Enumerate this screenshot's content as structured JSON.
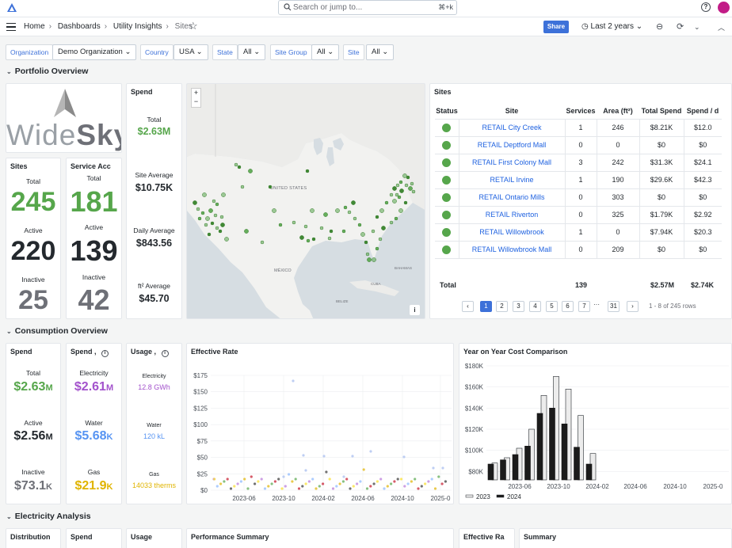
{
  "topbar": {
    "search_placeholder": "Search or jump to...",
    "search_shortcut": "⌘+k",
    "help": "?"
  },
  "breadcrumb": {
    "home": "Home",
    "dashboards": "Dashboards",
    "folder": "Utility Insights",
    "page": "Sites"
  },
  "toolbar": {
    "share": "Share",
    "time_range": "Last 2 years"
  },
  "variables": {
    "organization_label": "Organization",
    "organization_value": "Demo Organization",
    "country_label": "Country",
    "country_value": "USA",
    "state_label": "State",
    "state_value": "All",
    "site_group_label": "Site Group",
    "site_group_value": "All",
    "site_label": "Site",
    "site_value": "All"
  },
  "sections": {
    "portfolio": "Portfolio Overview",
    "consumption": "Consumption Overview",
    "electricity": "Electricity Analysis"
  },
  "logo": {
    "word1": "Wide",
    "word2": "Sky"
  },
  "sites_stat": {
    "title": "Sites",
    "total_label": "Total",
    "total": "245",
    "active_label": "Active",
    "active": "220",
    "inactive_label": "Inactive",
    "inactive": "25"
  },
  "service_stat": {
    "title": "Service Acc",
    "total_label": "Total",
    "total": "181",
    "active_label": "Active",
    "active": "139",
    "inactive_label": "Inactive",
    "inactive": "42"
  },
  "spend_stat": {
    "title": "Spend",
    "total_label": "Total",
    "total": "$2.63M",
    "site_avg_label": "Site Average",
    "site_avg": "$10.75K",
    "daily_avg_label": "Daily Average",
    "daily_avg": "$843.56",
    "sqft_avg_label": "ft² Average",
    "sqft_avg": "$45.70"
  },
  "map": {
    "label_us": "UNITED STATES",
    "label_mx": "MÉXICO",
    "label_belize": "BELIZE",
    "label_cuba": "CUBA",
    "label_bahamas": "BAHAMAS",
    "zoom_in": "+",
    "zoom_out": "−",
    "info": "i"
  },
  "sites_table": {
    "title": "Sites",
    "headers": [
      "Status",
      "Site",
      "Services",
      "Area (ft²)",
      "Total Spend",
      "Spend / d"
    ],
    "rows": [
      [
        "RETAIL City Creek",
        "1",
        "246",
        "$8.21K",
        "$12.0"
      ],
      [
        "RETAIL Deptford Mall",
        "0",
        "0",
        "$0",
        "$0"
      ],
      [
        "RETAIL First Colony Mall",
        "3",
        "242",
        "$31.3K",
        "$24.1"
      ],
      [
        "RETAIL Irvine",
        "1",
        "190",
        "$29.6K",
        "$42.3"
      ],
      [
        "RETAIL Ontario Mills",
        "0",
        "303",
        "$0",
        "$0"
      ],
      [
        "RETAIL Riverton",
        "0",
        "325",
        "$1.79K",
        "$2.92"
      ],
      [
        "RETAIL Willowbrook",
        "1",
        "0",
        "$7.94K",
        "$20.3"
      ],
      [
        "RETAIL Willowbrook Mall",
        "0",
        "209",
        "$0",
        "$0"
      ]
    ],
    "total_label": "Total",
    "total_services": "139",
    "total_spend": "$2.57M",
    "total_spend_d": "$2.74K",
    "pages": [
      "1",
      "2",
      "3",
      "4",
      "5",
      "6",
      "7",
      "···",
      "31"
    ],
    "prev": "‹",
    "next": "›",
    "range_text": "1 - 8 of 245 rows"
  },
  "cons_spend": {
    "title": "Spend",
    "total_label": "Total",
    "total": "$2.63",
    "total_unit": "M",
    "active_label": "Active",
    "active": "$2.56",
    "active_unit": "M",
    "inactive_label": "Inactive",
    "inactive": "$73.1",
    "inactive_unit": "K"
  },
  "cons_spend_by": {
    "title": "Spend ,",
    "elec_label": "Electricity",
    "elec": "$2.61",
    "elec_unit": "M",
    "water_label": "Water",
    "water": "$5.68",
    "water_unit": "K",
    "gas_label": "Gas",
    "gas": "$21.9",
    "gas_unit": "K"
  },
  "cons_usage": {
    "title": "Usage ,",
    "elec_label": "Electricity",
    "elec": "12.8 GWh",
    "water_label": "Water",
    "water": "120 kL",
    "gas_label": "Gas",
    "gas": "14033 therms"
  },
  "colors": {
    "green": "#56a64b",
    "purple": "#a352cc",
    "blue": "#5794f2",
    "gas": "#e0b400",
    "grey": "#6e7077",
    "link": "#1f62e0",
    "accent": "#3d71d9"
  },
  "effective_rate": {
    "title": "Effective Rate",
    "chart_data": {
      "type": "scatter",
      "y_ticks": [
        "$175",
        "$150",
        "$125",
        "$100",
        "$75",
        "$50",
        "$25",
        "$0"
      ],
      "x_ticks": [
        "2023-06",
        "2023-10",
        "2024-02",
        "2024-06",
        "2024-10",
        "2025-0"
      ],
      "ylim": [
        0,
        185
      ]
    }
  },
  "yoy": {
    "title": "Year on Year Cost Comparison",
    "chart_data": {
      "type": "bar",
      "y_ticks": [
        "$180K",
        "$160K",
        "$140K",
        "$120K",
        "$100K",
        "$80K"
      ],
      "x_ticks": [
        "2023-06",
        "2023-10",
        "2024-02",
        "2024-06",
        "2024-10",
        "2025-0"
      ],
      "ylim": [
        72,
        180
      ],
      "series": [
        {
          "name": "2023",
          "values": [
            88,
            93,
            102,
            120,
            152,
            170,
            158,
            133,
            97
          ]
        },
        {
          "name": "2024",
          "values": [
            87,
            91,
            96,
            104,
            135,
            140,
            125,
            103,
            87
          ]
        }
      ]
    }
  },
  "electricity_panels": {
    "distribution": "Distribution",
    "spend": "Spend",
    "usage": "Usage",
    "performance": "Performance Summary",
    "effective_rate": "Effective Ra",
    "summary": "Summary"
  }
}
